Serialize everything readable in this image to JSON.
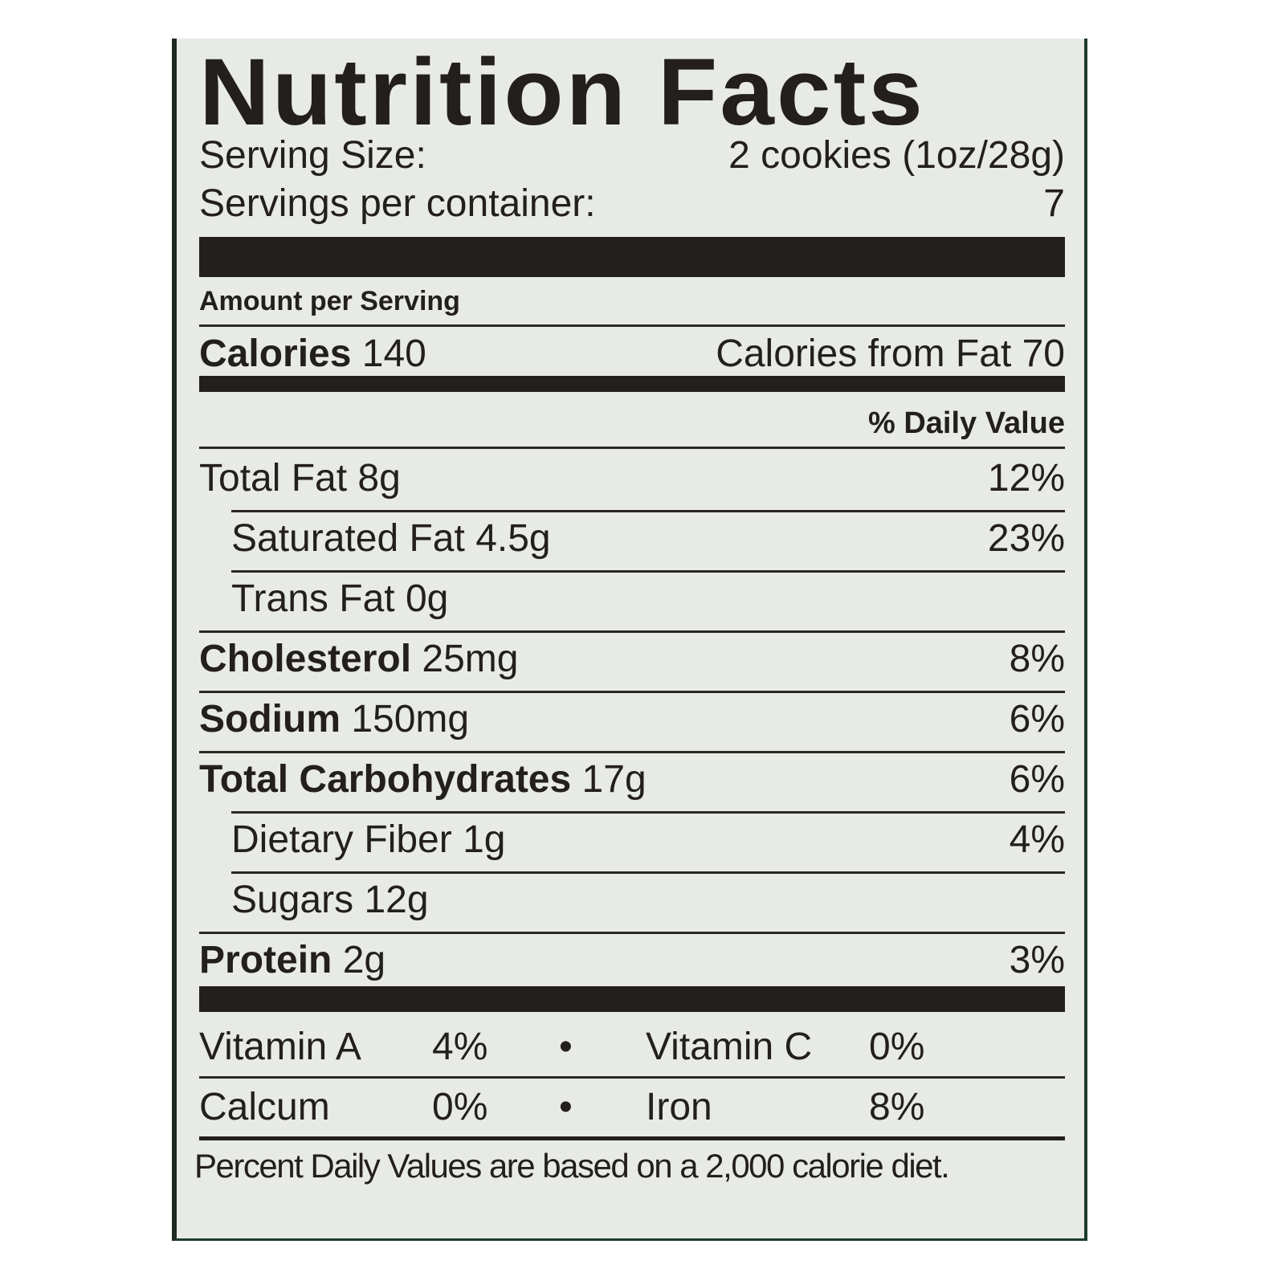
{
  "title": "Nutrition Facts",
  "serving_size": {
    "label": "Serving Size:",
    "value": "2 cookies (1oz/28g)"
  },
  "servings_per_container": {
    "label": "Servings per container:",
    "value": "7"
  },
  "amount_per_serving": "Amount per Serving",
  "calories": {
    "label": "Calories",
    "value": "140",
    "from_fat": "Calories from Fat 70"
  },
  "daily_value_header": "% Daily Value",
  "nutrients": [
    {
      "label": "Total Fat",
      "amount": "8g",
      "dv": "12%"
    },
    {
      "label": "Saturated Fat",
      "amount": "4.5g",
      "dv": "23%"
    },
    {
      "label": "Trans Fat",
      "amount": "0g",
      "dv": ""
    },
    {
      "label": "Cholesterol",
      "amount": "25mg",
      "dv": "8%"
    },
    {
      "label": "Sodium",
      "amount": "150mg",
      "dv": "6%"
    },
    {
      "label": "Total Carbohydrates",
      "amount": "17g",
      "dv": "6%"
    },
    {
      "label": "Dietary Fiber",
      "amount": "1g",
      "dv": "4%"
    },
    {
      "label": "Sugars",
      "amount": "12g",
      "dv": ""
    },
    {
      "label": "Protein",
      "amount": "2g",
      "dv": "3%"
    }
  ],
  "vitamins": [
    {
      "label": "Vitamin A",
      "dv": "4%"
    },
    {
      "label": "Vitamin C",
      "dv": "0%"
    },
    {
      "label": "Calcum",
      "dv": "0%"
    },
    {
      "label": "Iron",
      "dv": "8%"
    }
  ],
  "separator": "•",
  "footnote": "Percent Daily Values are based on a 2,000 calorie diet."
}
